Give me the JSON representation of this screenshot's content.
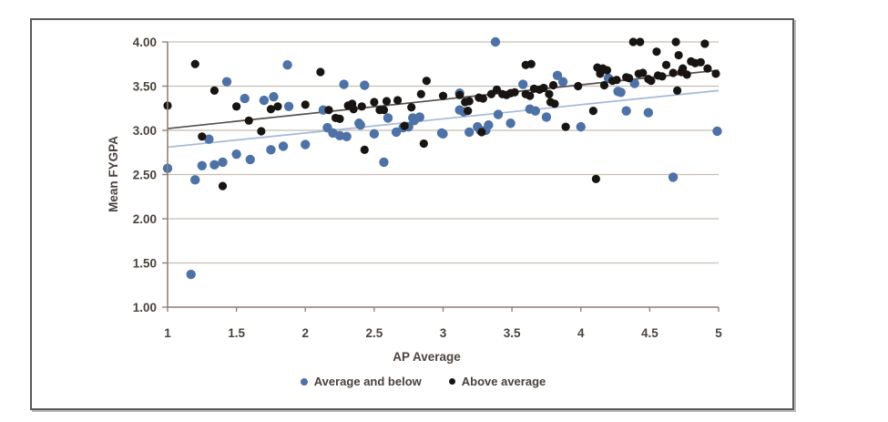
{
  "colors": {
    "background": "#ffffff",
    "frame_border": "#5a5a5a",
    "frame_shadow": "#bdbdbd",
    "grid": "#c6beb4",
    "axis": "#8d847a",
    "tick_text": "#4a433c",
    "legend_text": "#474139"
  },
  "chart_data": {
    "type": "scatter",
    "title": "",
    "xlabel": "AP Average",
    "ylabel": "Mean FYGPA",
    "xlim": [
      1,
      5
    ],
    "ylim": [
      1,
      4
    ],
    "x_tick_values": [
      1,
      1.5,
      2,
      2.5,
      3,
      3.5,
      4,
      4.5,
      5
    ],
    "x_tick_labels": [
      "1",
      "1.5",
      "2",
      "2.5",
      "3",
      "3.5",
      "4",
      "4.5",
      "5"
    ],
    "y_tick_values": [
      1,
      1.5,
      2,
      2.5,
      3,
      3.5,
      4
    ],
    "y_tick_labels": [
      "1.00",
      "1.50",
      "2.00",
      "2.50",
      "3.00",
      "3.50",
      "4.00"
    ],
    "grid": "horizontal-major",
    "legend_position": "bottom-center",
    "series": [
      {
        "name": "Average and below",
        "color": "#4e72a6",
        "marker": "circle",
        "marker_radius": 5.2,
        "trend": {
          "x1": 1,
          "y1": 2.81,
          "x2": 5,
          "y2": 3.45,
          "color": "#a4b9d7",
          "width": 1.7
        },
        "points": [
          [
            1.0,
            2.57
          ],
          [
            1.17,
            1.37
          ],
          [
            1.2,
            2.44
          ],
          [
            1.25,
            2.6
          ],
          [
            1.3,
            2.9
          ],
          [
            1.34,
            2.61
          ],
          [
            1.4,
            2.64
          ],
          [
            1.43,
            3.55
          ],
          [
            1.5,
            2.73
          ],
          [
            1.56,
            3.36
          ],
          [
            1.6,
            2.67
          ],
          [
            1.7,
            3.34
          ],
          [
            1.75,
            2.78
          ],
          [
            1.77,
            3.38
          ],
          [
            1.84,
            2.82
          ],
          [
            1.87,
            3.74
          ],
          [
            1.88,
            3.27
          ],
          [
            2.0,
            2.84
          ],
          [
            2.13,
            3.23
          ],
          [
            2.16,
            3.03
          ],
          [
            2.2,
            2.97
          ],
          [
            2.25,
            2.94
          ],
          [
            2.28,
            3.52
          ],
          [
            2.3,
            2.93
          ],
          [
            2.39,
            3.08
          ],
          [
            2.4,
            3.06
          ],
          [
            2.43,
            3.51
          ],
          [
            2.5,
            2.96
          ],
          [
            2.57,
            2.64
          ],
          [
            2.6,
            3.14
          ],
          [
            2.66,
            2.98
          ],
          [
            2.71,
            3.03
          ],
          [
            2.75,
            3.04
          ],
          [
            2.78,
            3.14
          ],
          [
            2.79,
            3.11
          ],
          [
            2.83,
            3.15
          ],
          [
            2.99,
            2.97
          ],
          [
            3.0,
            2.96
          ],
          [
            3.12,
            3.42
          ],
          [
            3.12,
            3.23
          ],
          [
            3.15,
            3.21
          ],
          [
            3.19,
            2.98
          ],
          [
            3.25,
            3.04
          ],
          [
            3.27,
            3.0
          ],
          [
            3.31,
            3.0
          ],
          [
            3.33,
            3.06
          ],
          [
            3.38,
            4.0
          ],
          [
            3.4,
            3.18
          ],
          [
            3.49,
            3.08
          ],
          [
            3.58,
            3.52
          ],
          [
            3.63,
            3.24
          ],
          [
            3.67,
            3.22
          ],
          [
            3.75,
            3.15
          ],
          [
            3.83,
            3.62
          ],
          [
            3.87,
            3.55
          ],
          [
            4.0,
            3.04
          ],
          [
            4.2,
            3.59
          ],
          [
            4.27,
            3.44
          ],
          [
            4.29,
            3.43
          ],
          [
            4.33,
            3.22
          ],
          [
            4.39,
            3.53
          ],
          [
            4.49,
            3.2
          ],
          [
            4.67,
            2.47
          ],
          [
            4.99,
            2.99
          ]
        ]
      },
      {
        "name": "Above average",
        "color": "#181411",
        "marker": "circle",
        "marker_radius": 4.6,
        "trend": {
          "x1": 1,
          "y1": 3.02,
          "x2": 5,
          "y2": 3.68,
          "color": "#55504b",
          "width": 1.7
        },
        "points": [
          [
            1.0,
            3.28
          ],
          [
            1.2,
            3.75
          ],
          [
            1.25,
            2.93
          ],
          [
            1.34,
            3.45
          ],
          [
            1.4,
            2.37
          ],
          [
            1.5,
            3.27
          ],
          [
            1.59,
            3.11
          ],
          [
            1.68,
            2.99
          ],
          [
            1.75,
            3.24
          ],
          [
            1.8,
            3.27
          ],
          [
            2.0,
            3.29
          ],
          [
            2.11,
            3.66
          ],
          [
            2.17,
            3.23
          ],
          [
            2.22,
            3.14
          ],
          [
            2.25,
            3.13
          ],
          [
            2.31,
            3.28
          ],
          [
            2.34,
            3.3
          ],
          [
            2.35,
            3.24
          ],
          [
            2.41,
            3.27
          ],
          [
            2.43,
            2.78
          ],
          [
            2.5,
            3.32
          ],
          [
            2.54,
            3.23
          ],
          [
            2.57,
            3.23
          ],
          [
            2.59,
            3.33
          ],
          [
            2.67,
            3.34
          ],
          [
            2.72,
            3.05
          ],
          [
            2.77,
            3.26
          ],
          [
            2.84,
            3.41
          ],
          [
            2.86,
            2.85
          ],
          [
            2.88,
            3.56
          ],
          [
            3.0,
            3.39
          ],
          [
            3.12,
            3.4
          ],
          [
            3.16,
            3.32
          ],
          [
            3.18,
            3.22
          ],
          [
            3.19,
            3.33
          ],
          [
            3.26,
            3.37
          ],
          [
            3.28,
            2.98
          ],
          [
            3.29,
            3.36
          ],
          [
            3.35,
            3.41
          ],
          [
            3.39,
            3.46
          ],
          [
            3.43,
            3.41
          ],
          [
            3.46,
            3.4
          ],
          [
            3.49,
            3.42
          ],
          [
            3.52,
            3.43
          ],
          [
            3.6,
            3.74
          ],
          [
            3.64,
            3.75
          ],
          [
            3.6,
            3.41
          ],
          [
            3.63,
            3.39
          ],
          [
            3.66,
            3.47
          ],
          [
            3.7,
            3.46
          ],
          [
            3.73,
            3.48
          ],
          [
            3.77,
            3.41
          ],
          [
            3.78,
            3.32
          ],
          [
            3.8,
            3.51
          ],
          [
            3.81,
            3.3
          ],
          [
            3.89,
            3.04
          ],
          [
            3.98,
            3.5
          ],
          [
            4.09,
            3.22
          ],
          [
            4.11,
            2.45
          ],
          [
            4.12,
            3.71
          ],
          [
            4.14,
            3.64
          ],
          [
            4.16,
            3.7
          ],
          [
            4.17,
            3.51
          ],
          [
            4.19,
            3.68
          ],
          [
            4.23,
            3.56
          ],
          [
            4.26,
            3.57
          ],
          [
            4.33,
            3.6
          ],
          [
            4.35,
            3.59
          ],
          [
            4.38,
            4.0
          ],
          [
            4.42,
            3.64
          ],
          [
            4.43,
            4.0
          ],
          [
            4.45,
            3.65
          ],
          [
            4.49,
            3.58
          ],
          [
            4.51,
            3.56
          ],
          [
            4.55,
            3.89
          ],
          [
            4.56,
            3.62
          ],
          [
            4.59,
            3.61
          ],
          [
            4.62,
            3.74
          ],
          [
            4.67,
            3.65
          ],
          [
            4.69,
            4.0
          ],
          [
            4.7,
            3.45
          ],
          [
            4.71,
            3.85
          ],
          [
            4.73,
            3.66
          ],
          [
            4.74,
            3.7
          ],
          [
            4.77,
            3.63
          ],
          [
            4.8,
            3.78
          ],
          [
            4.83,
            3.76
          ],
          [
            4.87,
            3.77
          ],
          [
            4.9,
            3.98
          ],
          [
            4.92,
            3.7
          ],
          [
            4.98,
            3.64
          ]
        ]
      }
    ]
  }
}
